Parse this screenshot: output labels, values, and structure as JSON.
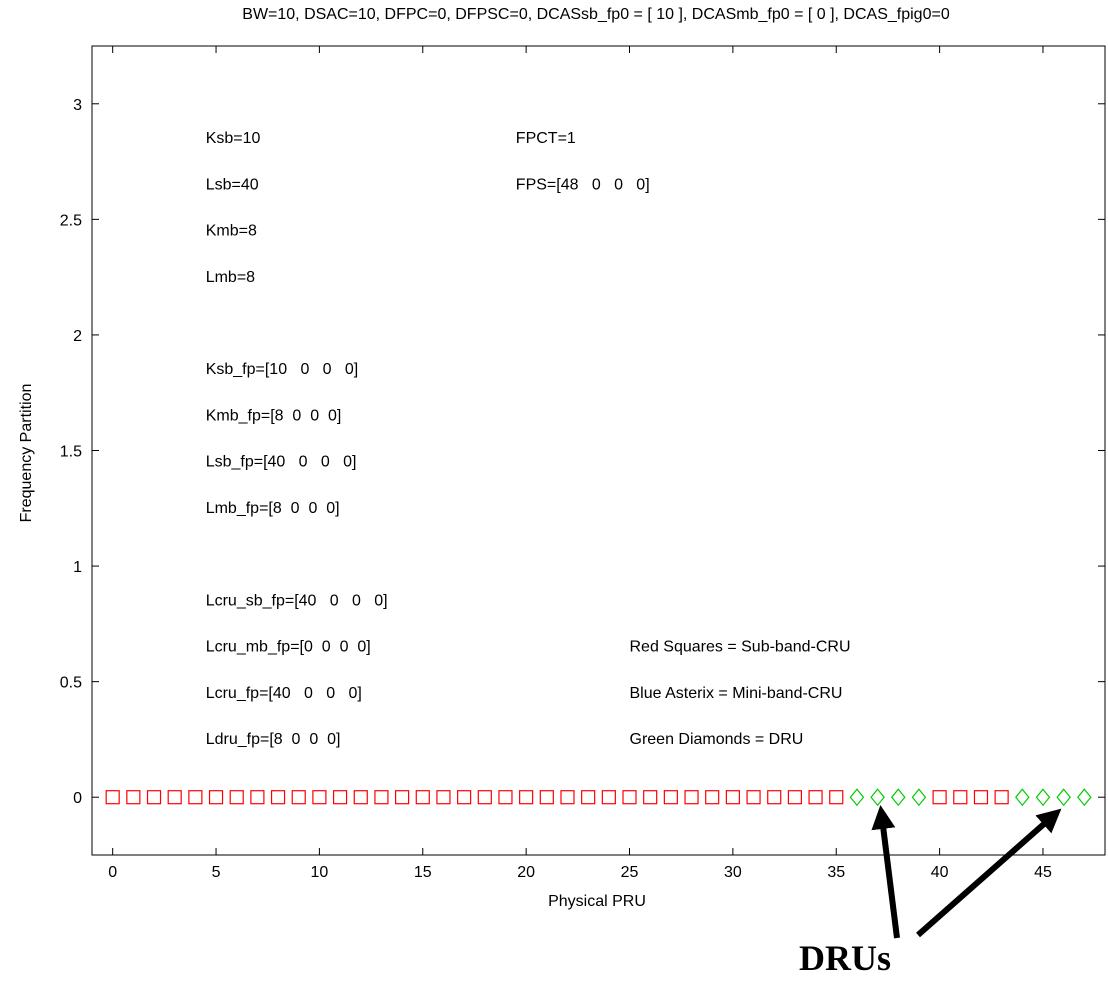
{
  "chart_data": {
    "type": "scatter",
    "title": "BW=10, DSAC=10, DFPC=0, DFPSC=0, DCASsb_fp0 = [ 10 ], DCASmb_fp0 = [ 0 ], DCAS_fpig0=0",
    "xlabel": "Physical PRU",
    "ylabel": "Frequency Partition",
    "xlim": [
      -1,
      48
    ],
    "ylim": [
      -0.25,
      3.25
    ],
    "xticks": [
      0,
      5,
      10,
      15,
      20,
      25,
      30,
      35,
      40,
      45
    ],
    "yticks": [
      0,
      0.5,
      1,
      1.5,
      2,
      2.5,
      3
    ],
    "xtick_labels": [
      "0",
      "5",
      "10",
      "15",
      "20",
      "25",
      "30",
      "35",
      "40",
      "45"
    ],
    "ytick_labels": [
      "0",
      "0.5",
      "1",
      "1.5",
      "2",
      "2.5",
      "3"
    ],
    "grid": false,
    "series": [
      {
        "marker": "square",
        "color": "#ff0000",
        "x": [
          0,
          1,
          2,
          3,
          4,
          5,
          6,
          7,
          8,
          9,
          10,
          11,
          12,
          13,
          14,
          15,
          16,
          17,
          18,
          19,
          20,
          21,
          22,
          23,
          24,
          25,
          26,
          27,
          28,
          29,
          30,
          31,
          32,
          33,
          34,
          35,
          40,
          41,
          42,
          43
        ],
        "y": [
          0,
          0,
          0,
          0,
          0,
          0,
          0,
          0,
          0,
          0,
          0,
          0,
          0,
          0,
          0,
          0,
          0,
          0,
          0,
          0,
          0,
          0,
          0,
          0,
          0,
          0,
          0,
          0,
          0,
          0,
          0,
          0,
          0,
          0,
          0,
          0,
          0,
          0,
          0,
          0
        ]
      },
      {
        "marker": "diamond",
        "color": "#00cc00",
        "x": [
          36,
          37,
          38,
          39,
          44,
          45,
          46,
          47
        ],
        "y": [
          0,
          0,
          0,
          0,
          0,
          0,
          0,
          0
        ]
      }
    ],
    "annotations_left": [
      {
        "text": "Ksb=10",
        "x": 4.5,
        "y": 2.83
      },
      {
        "text": "Lsb=40",
        "x": 4.5,
        "y": 2.63
      },
      {
        "text": "Kmb=8",
        "x": 4.5,
        "y": 2.43
      },
      {
        "text": "Lmb=8",
        "x": 4.5,
        "y": 2.23
      },
      {
        "text": "Ksb_fp=[10   0   0   0]",
        "x": 4.5,
        "y": 1.83
      },
      {
        "text": "Kmb_fp=[8  0  0  0]",
        "x": 4.5,
        "y": 1.63
      },
      {
        "text": "Lsb_fp=[40   0   0   0]",
        "x": 4.5,
        "y": 1.43
      },
      {
        "text": "Lmb_fp=[8  0  0  0]",
        "x": 4.5,
        "y": 1.23
      },
      {
        "text": "Lcru_sb_fp=[40   0   0   0]",
        "x": 4.5,
        "y": 0.83
      },
      {
        "text": "Lcru_mb_fp=[0  0  0  0]",
        "x": 4.5,
        "y": 0.63
      },
      {
        "text": "Lcru_fp=[40   0   0   0]",
        "x": 4.5,
        "y": 0.43
      },
      {
        "text": "Ldru_fp=[8  0  0  0]",
        "x": 4.5,
        "y": 0.23
      }
    ],
    "annotations_right_top": [
      {
        "text": "FPCT=1",
        "x": 19.5,
        "y": 2.83
      },
      {
        "text": "FPS=[48   0   0   0]",
        "x": 19.5,
        "y": 2.63
      }
    ],
    "legend_notes": [
      {
        "text": "Red Squares = Sub-band-CRU",
        "x": 25,
        "y": 0.63
      },
      {
        "text": "Blue Asterix = Mini-band-CRU",
        "x": 25,
        "y": 0.43
      },
      {
        "text": "Green Diamonds = DRU",
        "x": 25,
        "y": 0.23
      }
    ],
    "callout": {
      "text": "DRUs",
      "color": "#000000",
      "arrow_targets": [
        {
          "x": 37.2,
          "y": -0.08
        },
        {
          "x": 45.5,
          "y": -0.08
        }
      ]
    }
  }
}
